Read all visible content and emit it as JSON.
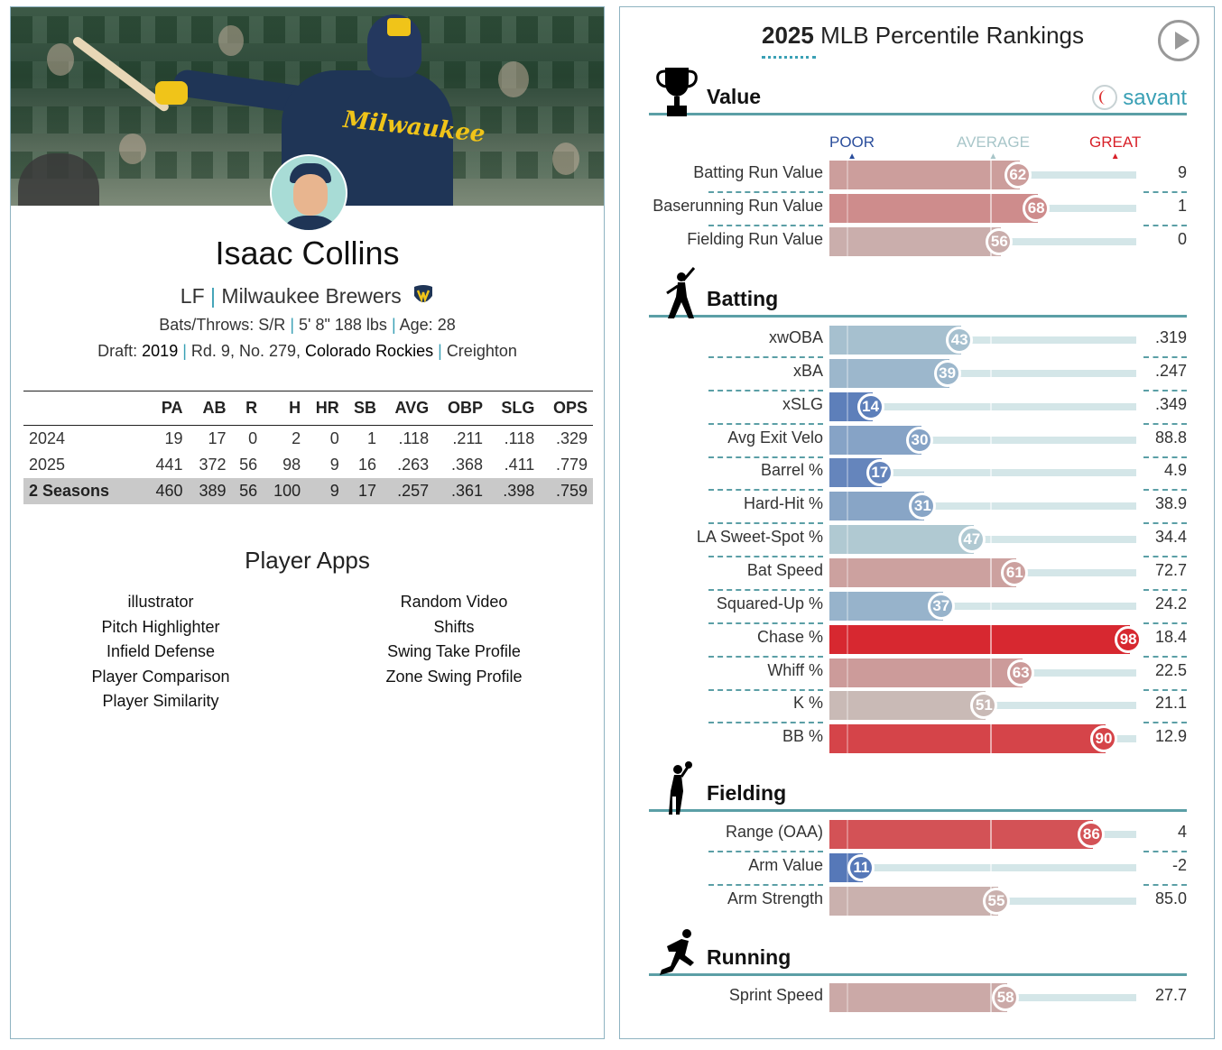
{
  "player": {
    "name": "Isaac Collins",
    "position": "LF",
    "team": "Milwaukee Brewers",
    "bats_throws_label": "Bats/Throws:",
    "bats_throws": "S/R",
    "height_weight": "5' 8\" 188 lbs",
    "age_label": "Age:",
    "age": "28",
    "draft_label": "Draft:",
    "draft_year": "2019",
    "draft_pick": "Rd. 9, No. 279,",
    "draft_team": "Colorado Rockies",
    "school": "Creighton",
    "jersey_text": "Milwaukee"
  },
  "stats": {
    "headers": [
      "",
      "PA",
      "AB",
      "R",
      "H",
      "HR",
      "SB",
      "AVG",
      "OBP",
      "SLG",
      "OPS"
    ],
    "rows": [
      [
        "2024",
        "19",
        "17",
        "0",
        "2",
        "0",
        "1",
        ".118",
        ".211",
        ".118",
        ".329"
      ],
      [
        "2025",
        "441",
        "372",
        "56",
        "98",
        "9",
        "16",
        ".263",
        ".368",
        ".411",
        ".779"
      ],
      [
        "2 Seasons",
        "460",
        "389",
        "56",
        "100",
        "9",
        "17",
        ".257",
        ".361",
        ".398",
        ".759"
      ]
    ]
  },
  "apps": {
    "title": "Player Apps",
    "left": [
      "illustrator",
      "Pitch Highlighter",
      "Infield Defense",
      "Player Comparison",
      "Player Similarity"
    ],
    "right": [
      "Random Video",
      "Shifts",
      "Swing Take Profile",
      "Zone Swing Profile"
    ]
  },
  "rankings": {
    "title_bold": "2025",
    "title_rest": "MLB Percentile Rankings",
    "brand": "savant",
    "scale": {
      "poor": "POOR",
      "average": "AVERAGE",
      "great": "GREAT"
    },
    "colors": {
      "poor": "#3a5fb0",
      "average": "#c8c8c8",
      "great": "#d82129",
      "poor_label": "#2b4e9c",
      "avg_label": "#a8c6c9",
      "great_label": "#d82129"
    },
    "sections": [
      {
        "name": "Value",
        "icon": "trophy-icon",
        "metrics": [
          {
            "label": "Batting Run Value",
            "percentile": 62,
            "value": "9"
          },
          {
            "label": "Baserunning Run Value",
            "percentile": 68,
            "value": "1"
          },
          {
            "label": "Fielding Run Value",
            "percentile": 56,
            "value": "0"
          }
        ]
      },
      {
        "name": "Batting",
        "icon": "batter-icon",
        "metrics": [
          {
            "label": "xwOBA",
            "percentile": 43,
            "value": ".319"
          },
          {
            "label": "xBA",
            "percentile": 39,
            "value": ".247"
          },
          {
            "label": "xSLG",
            "percentile": 14,
            "value": ".349"
          },
          {
            "label": "Avg Exit Velo",
            "percentile": 30,
            "value": "88.8"
          },
          {
            "label": "Barrel %",
            "percentile": 17,
            "value": "4.9"
          },
          {
            "label": "Hard-Hit %",
            "percentile": 31,
            "value": "38.9"
          },
          {
            "label": "LA Sweet-Spot %",
            "percentile": 47,
            "value": "34.4"
          },
          {
            "label": "Bat Speed",
            "percentile": 61,
            "value": "72.7"
          },
          {
            "label": "Squared-Up %",
            "percentile": 37,
            "value": "24.2"
          },
          {
            "label": "Chase %",
            "percentile": 98,
            "value": "18.4"
          },
          {
            "label": "Whiff %",
            "percentile": 63,
            "value": "22.5"
          },
          {
            "label": "K %",
            "percentile": 51,
            "value": "21.1"
          },
          {
            "label": "BB %",
            "percentile": 90,
            "value": "12.9"
          }
        ]
      },
      {
        "name": "Fielding",
        "icon": "fielder-icon",
        "metrics": [
          {
            "label": "Range (OAA)",
            "percentile": 86,
            "value": "4"
          },
          {
            "label": "Arm Value",
            "percentile": 11,
            "value": "-2"
          },
          {
            "label": "Arm Strength",
            "percentile": 55,
            "value": "85.0"
          }
        ]
      },
      {
        "name": "Running",
        "icon": "runner-icon",
        "metrics": [
          {
            "label": "Sprint Speed",
            "percentile": 58,
            "value": "27.7"
          }
        ]
      }
    ]
  }
}
